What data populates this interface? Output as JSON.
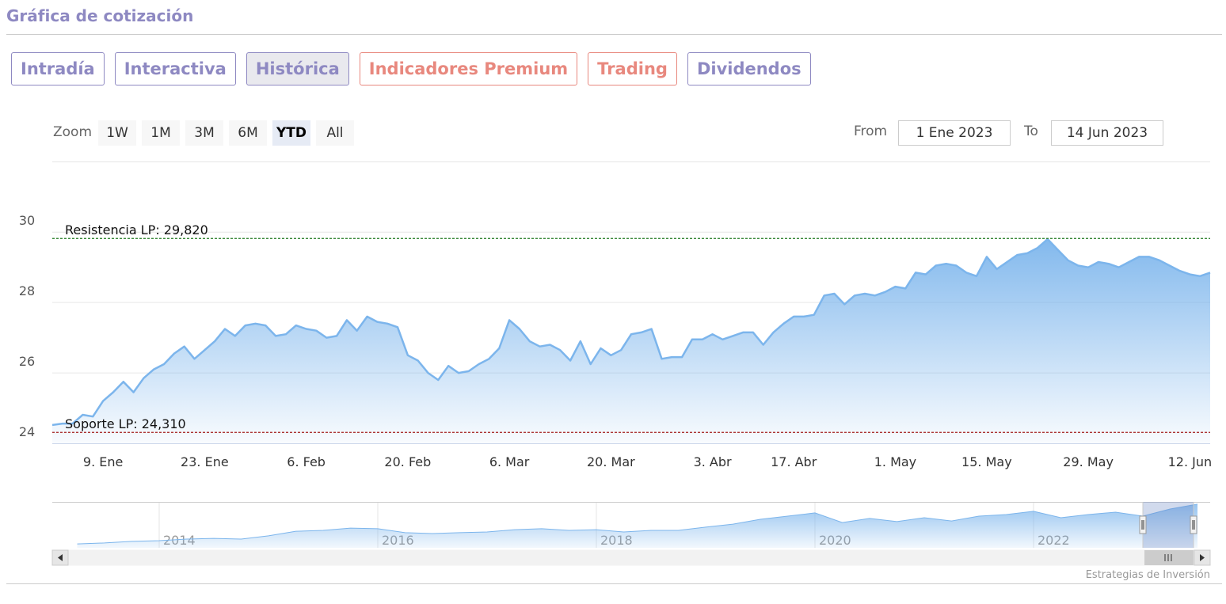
{
  "header": {
    "title": "Gráfica de cotización"
  },
  "tabs": [
    {
      "label": "Intradía",
      "color": "#8e89c2"
    },
    {
      "label": "Interactiva",
      "color": "#8e89c2"
    },
    {
      "label": "Histórica",
      "color": "#8e89c2",
      "selected": true
    },
    {
      "label": "Indicadores Premium",
      "color": "#e8887e"
    },
    {
      "label": "Trading",
      "color": "#e8887e"
    },
    {
      "label": "Dividendos",
      "color": "#8e89c2"
    }
  ],
  "zoom": {
    "label": "Zoom",
    "buttons": [
      "1W",
      "1M",
      "3M",
      "6M",
      "YTD",
      "All"
    ],
    "selected": "YTD"
  },
  "range": {
    "from_label": "From",
    "from": "1 Ene 2023",
    "to_label": "To",
    "to": "14 Jun 2023"
  },
  "chart_data": {
    "type": "area",
    "color": "#7cb5ec",
    "categories": [
      null,
      null,
      null,
      null,
      null,
      "9. Ene",
      null,
      null,
      null,
      null,
      null,
      null,
      null,
      null,
      null,
      "23. Ene",
      null,
      null,
      null,
      null,
      null,
      null,
      null,
      null,
      null,
      "6. Feb",
      null,
      null,
      null,
      null,
      null,
      null,
      null,
      null,
      null,
      "20. Feb",
      null,
      null,
      null,
      null,
      null,
      null,
      null,
      null,
      null,
      "6. Mar",
      null,
      null,
      null,
      null,
      null,
      null,
      null,
      null,
      null,
      "20. Mar",
      null,
      null,
      null,
      null,
      null,
      null,
      null,
      null,
      null,
      "3. Abr",
      null,
      null,
      null,
      null,
      null,
      null,
      null,
      "17. Abr",
      null,
      null,
      null,
      null,
      null,
      null,
      null,
      null,
      null,
      "1. May",
      null,
      null,
      null,
      null,
      null,
      null,
      null,
      null,
      "15. May",
      null,
      null,
      null,
      null,
      null,
      null,
      null,
      null,
      null,
      "29. May",
      null,
      null,
      null,
      null,
      null,
      null,
      null,
      null,
      null,
      "12. Jun",
      null,
      null
    ],
    "values": [
      24.52,
      24.56,
      24.56,
      24.81,
      24.76,
      25.2,
      25.45,
      25.75,
      25.45,
      25.85,
      26.1,
      26.25,
      26.55,
      26.75,
      26.4,
      26.65,
      26.9,
      27.25,
      27.05,
      27.35,
      27.4,
      27.35,
      27.05,
      27.1,
      27.35,
      27.25,
      27.2,
      27.0,
      27.05,
      27.5,
      27.2,
      27.6,
      27.45,
      27.4,
      27.3,
      26.5,
      26.35,
      26.0,
      25.8,
      26.2,
      26.0,
      26.05,
      26.25,
      26.4,
      26.7,
      27.5,
      27.25,
      26.9,
      26.75,
      26.8,
      26.65,
      26.35,
      26.9,
      26.25,
      26.7,
      26.5,
      26.65,
      27.1,
      27.15,
      27.25,
      26.4,
      26.45,
      26.45,
      26.95,
      26.95,
      27.1,
      26.95,
      27.05,
      27.15,
      27.15,
      26.8,
      27.15,
      27.4,
      27.6,
      27.6,
      27.65,
      28.2,
      28.25,
      27.95,
      28.2,
      28.25,
      28.2,
      28.3,
      28.45,
      28.4,
      28.85,
      28.8,
      29.05,
      29.1,
      29.05,
      28.85,
      28.75,
      29.3,
      28.95,
      29.15,
      29.35,
      29.4,
      29.55,
      29.8,
      29.5,
      29.2,
      29.05,
      29.0,
      29.15,
      29.1,
      29.0,
      29.15,
      29.3,
      29.3,
      29.2,
      29.05,
      28.9,
      28.8,
      28.75,
      28.85
    ],
    "ylim": [
      24,
      30.5
    ],
    "yticks": [
      24,
      26,
      28,
      30
    ],
    "grid": true,
    "plot_lines": [
      {
        "label": "Resistencia LP: 29,820",
        "value": 29.82,
        "color": "#1f7a1f"
      },
      {
        "label": "Soporte LP: 24,310",
        "value": 24.31,
        "color": "#a31a1a"
      }
    ],
    "navigator": {
      "categories": [
        null,
        null,
        null,
        "2014",
        null,
        null,
        null,
        null,
        null,
        null,
        null,
        "2016",
        null,
        null,
        null,
        null,
        null,
        null,
        null,
        "2018",
        null,
        null,
        null,
        null,
        null,
        null,
        null,
        "2020",
        null,
        null,
        null,
        null,
        null,
        null,
        null,
        "2022",
        null,
        null,
        null,
        null,
        null,
        null
      ],
      "values": [
        11.7,
        12.1,
        12.8,
        13.1,
        13.8,
        14.1,
        13.8,
        15.2,
        17.2,
        17.6,
        18.6,
        18.3,
        16.6,
        16.2,
        16.6,
        16.9,
        17.9,
        18.3,
        17.6,
        17.9,
        16.9,
        17.6,
        17.6,
        19.0,
        20.3,
        22.4,
        23.8,
        25.2,
        21.0,
        22.8,
        21.4,
        23.1,
        21.7,
        23.8,
        24.5,
        25.9,
        23.1,
        24.5,
        25.5,
        23.8,
        26.9,
        29.0
      ],
      "ylim": [
        10,
        30
      ]
    }
  },
  "credit": "Estrategias de Inversión"
}
